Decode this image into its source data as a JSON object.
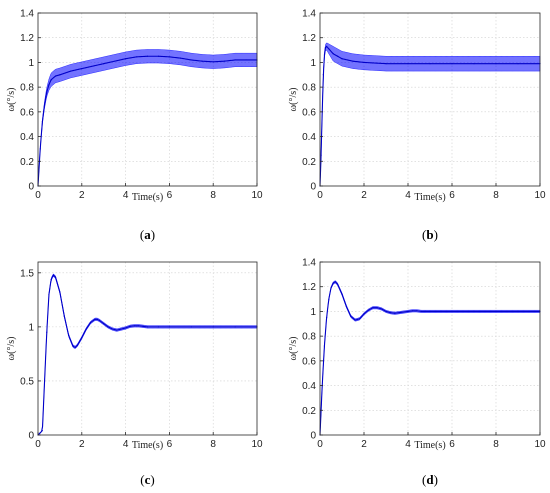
{
  "chart_data": [
    {
      "id": "a",
      "type": "line",
      "caption": "a",
      "xlabel": "Time(s)",
      "ylabel": "ω(°/s)",
      "xlim": [
        0,
        10
      ],
      "ylim": [
        0,
        1.4
      ],
      "xticks": [
        0,
        2,
        4,
        6,
        8,
        10
      ],
      "yticks": [
        0,
        0.2,
        0.4,
        0.6,
        0.8,
        1,
        1.2,
        1.4
      ],
      "grid": true,
      "color": "#0000ff",
      "band_halfwidth": 0.055,
      "x": [
        0,
        0.1,
        0.2,
        0.3,
        0.4,
        0.5,
        0.6,
        0.8,
        1,
        1.5,
        2,
        3,
        4,
        4.5,
        5,
        5.5,
        6,
        6.5,
        7,
        7.5,
        8,
        8.5,
        9,
        9.5,
        10
      ],
      "y": [
        0,
        0.3,
        0.52,
        0.66,
        0.76,
        0.82,
        0.86,
        0.89,
        0.9,
        0.93,
        0.95,
        0.99,
        1.03,
        1.045,
        1.05,
        1.05,
        1.045,
        1.035,
        1.02,
        1.01,
        1.005,
        1.01,
        1.02,
        1.02,
        1.02
      ]
    },
    {
      "id": "b",
      "type": "line",
      "caption": "b",
      "xlabel": "Time(s)",
      "ylabel": "ω(°/s)",
      "xlim": [
        0,
        10
      ],
      "ylim": [
        0,
        1.4
      ],
      "xticks": [
        0,
        2,
        4,
        6,
        8,
        10
      ],
      "yticks": [
        0,
        0.2,
        0.4,
        0.6,
        0.8,
        1,
        1.2,
        1.4
      ],
      "grid": true,
      "color": "#0000ff",
      "band_halfwidth": 0.06,
      "x": [
        0,
        0.05,
        0.1,
        0.15,
        0.2,
        0.25,
        0.3,
        0.4,
        0.6,
        0.8,
        1,
        1.5,
        2,
        3,
        4,
        5,
        6,
        7,
        8,
        9,
        10
      ],
      "y": [
        0,
        0.25,
        0.6,
        0.9,
        1.06,
        1.12,
        1.13,
        1.11,
        1.07,
        1.05,
        1.03,
        1.01,
        1.0,
        0.99,
        0.99,
        0.99,
        0.99,
        0.99,
        0.99,
        0.99,
        0.99
      ]
    },
    {
      "id": "c",
      "type": "line",
      "caption": "c",
      "xlabel": "Time(s)",
      "ylabel": "ω(°/s)",
      "xlim": [
        0,
        10
      ],
      "ylim": [
        0,
        1.6
      ],
      "xticks": [
        0,
        2,
        4,
        6,
        8,
        10
      ],
      "yticks": [
        0,
        0.5,
        1,
        1.5
      ],
      "grid": true,
      "color": "#0000ff",
      "band_halfwidth": 0.012,
      "x": [
        0,
        0.1,
        0.2,
        0.3,
        0.4,
        0.5,
        0.6,
        0.7,
        0.8,
        1.0,
        1.2,
        1.4,
        1.6,
        1.7,
        1.8,
        2.0,
        2.2,
        2.4,
        2.6,
        2.7,
        2.8,
        3.0,
        3.2,
        3.4,
        3.6,
        3.8,
        4.0,
        4.2,
        4.4,
        4.6,
        4.8,
        5.0,
        5.5,
        6,
        7,
        8,
        9,
        10
      ],
      "y": [
        0,
        0.02,
        0.04,
        0.5,
        0.95,
        1.3,
        1.44,
        1.48,
        1.46,
        1.32,
        1.1,
        0.92,
        0.82,
        0.81,
        0.83,
        0.9,
        0.98,
        1.04,
        1.07,
        1.07,
        1.06,
        1.03,
        1.0,
        0.98,
        0.97,
        0.98,
        0.99,
        1.005,
        1.01,
        1.01,
        1.005,
        1.0,
        1.0,
        1.0,
        1.0,
        1.0,
        1.0,
        1.0
      ]
    },
    {
      "id": "d",
      "type": "line",
      "caption": "d",
      "xlabel": "Time(s)",
      "ylabel": "ω(°/s)",
      "xlim": [
        0,
        10
      ],
      "ylim": [
        0,
        1.4
      ],
      "xticks": [
        0,
        2,
        4,
        6,
        8,
        10
      ],
      "yticks": [
        0,
        0.2,
        0.4,
        0.6,
        0.8,
        1,
        1.2,
        1.4
      ],
      "grid": true,
      "color": "#0000ff",
      "band_halfwidth": 0.01,
      "x": [
        0,
        0.1,
        0.2,
        0.3,
        0.4,
        0.5,
        0.6,
        0.7,
        0.8,
        1.0,
        1.2,
        1.4,
        1.6,
        1.8,
        2.0,
        2.2,
        2.4,
        2.6,
        2.8,
        3.0,
        3.2,
        3.4,
        3.6,
        3.8,
        4.0,
        4.2,
        4.4,
        4.6,
        4.8,
        5.0,
        5.5,
        6,
        7,
        8,
        9,
        10
      ],
      "y": [
        0,
        0.4,
        0.72,
        0.95,
        1.1,
        1.19,
        1.23,
        1.24,
        1.22,
        1.14,
        1.04,
        0.96,
        0.93,
        0.94,
        0.98,
        1.01,
        1.03,
        1.03,
        1.02,
        1.0,
        0.99,
        0.985,
        0.99,
        0.995,
        1.0,
        1.005,
        1.005,
        1.0,
        1.0,
        1.0,
        1.0,
        1.0,
        1.0,
        1.0,
        1.0,
        1.0
      ]
    }
  ]
}
